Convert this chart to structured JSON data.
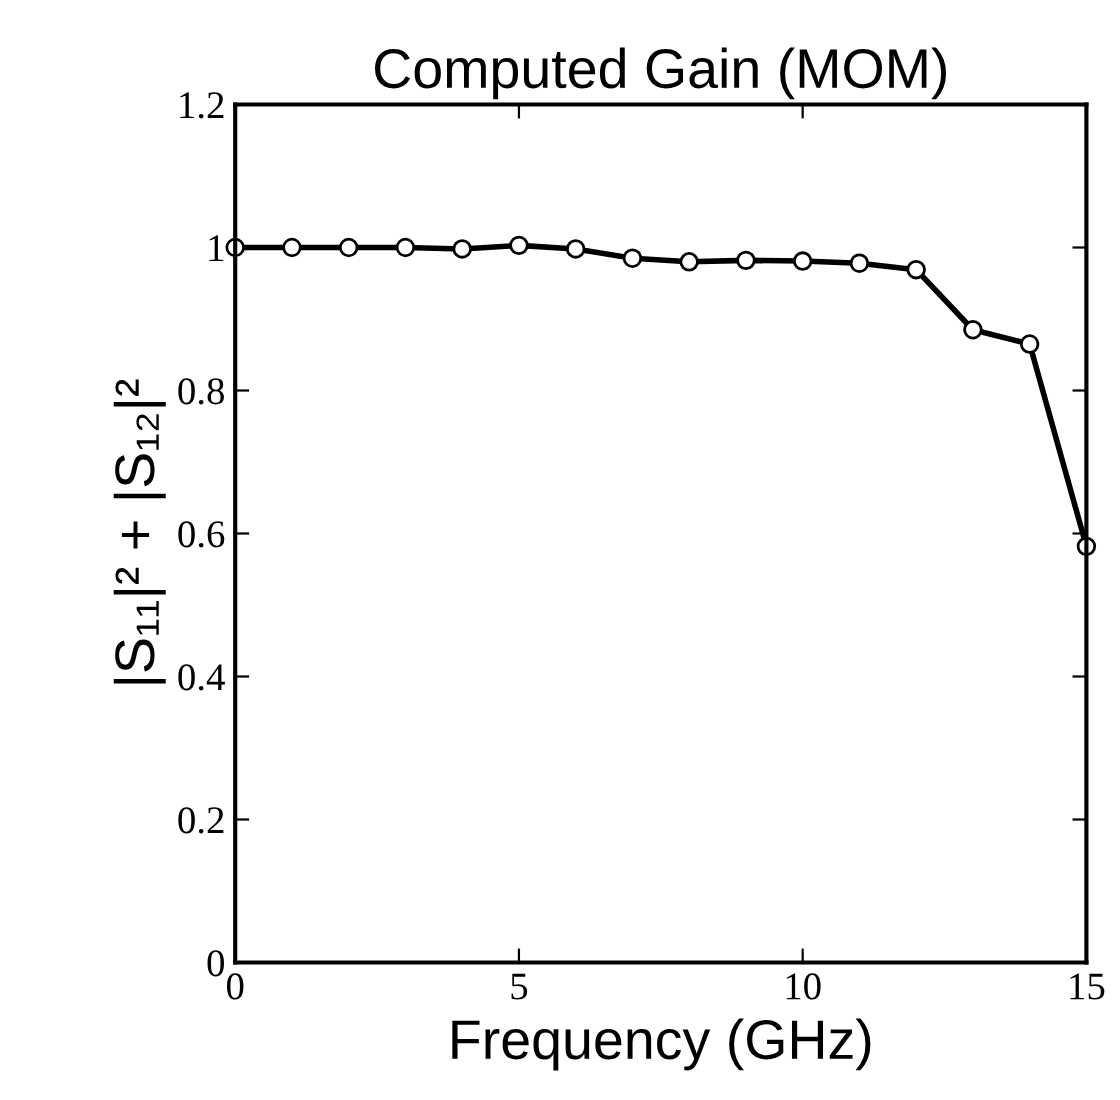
{
  "chart_data": {
    "type": "line",
    "title": "Computed Gain (MOM)",
    "xlabel": "Frequency (GHz)",
    "ylabel": "|S₁₁|² + |S₁₂|²",
    "x": [
      0,
      1,
      2,
      3,
      4,
      5,
      6,
      7,
      8,
      9,
      10,
      11,
      12,
      13,
      14,
      15
    ],
    "series": [
      {
        "color": "#000000",
        "values": [
          1.0,
          1.0,
          1.0,
          1.0,
          0.998,
          1.003,
          0.998,
          0.985,
          0.98,
          0.982,
          0.981,
          0.978,
          0.969,
          0.885,
          0.865,
          0.582
        ]
      }
    ],
    "xlim": [
      0,
      15
    ],
    "ylim": [
      0,
      1.2
    ],
    "xticks": [
      0,
      5,
      10,
      15
    ],
    "yticks": [
      0,
      0.2,
      0.4,
      0.6,
      0.8,
      1,
      1.2
    ],
    "marker": "circle",
    "line_style": "solid",
    "grid": false,
    "legend": false
  }
}
